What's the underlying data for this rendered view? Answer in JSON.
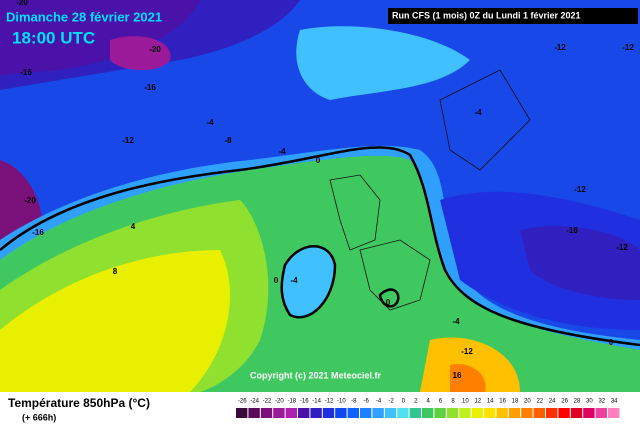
{
  "header": {
    "date": "Dimanche 28 février 2021",
    "time": "18:00 UTC",
    "run": "Run CFS (1 mois) 0Z du Lundi 1 février 2021"
  },
  "copyright": "Copyright (c) 2021 Meteociel.fr",
  "legend": {
    "title": "Température 850hPa (°C)",
    "subtitle": "(+ 666h)",
    "ticks": [
      -26,
      -24,
      -22,
      -20,
      -18,
      -16,
      -14,
      -12,
      -10,
      -8,
      -6,
      -4,
      -2,
      0,
      2,
      4,
      6,
      8,
      10,
      12,
      14,
      16,
      18,
      20,
      22,
      24,
      26,
      28,
      30,
      32,
      34
    ],
    "colors": [
      "#3a0a3a",
      "#5a0a5a",
      "#7a107a",
      "#9a1a9a",
      "#b020b0",
      "#4a12a8",
      "#3020c0",
      "#2030e0",
      "#1048f0",
      "#1060ff",
      "#2080ff",
      "#30a0ff",
      "#40c0ff",
      "#50e0f0",
      "#30c890",
      "#40c860",
      "#60d040",
      "#90e030",
      "#c0f020",
      "#e8f000",
      "#ffe000",
      "#ffc000",
      "#ffa000",
      "#ff8000",
      "#ff6000",
      "#ff3000",
      "#ff0000",
      "#e00020",
      "#e00060",
      "#f040a0",
      "#ff80c0"
    ]
  },
  "contour_labels": [
    "-20",
    "-20",
    "-16",
    "-16",
    "-12",
    "-8",
    "-4",
    "-4",
    "0",
    "-12",
    "-12",
    "-4",
    "-12",
    "-16",
    "-12",
    "-20",
    "-16",
    "4",
    "8",
    "0",
    "-4",
    "0",
    "-4",
    "-12",
    "16",
    "0"
  ]
}
